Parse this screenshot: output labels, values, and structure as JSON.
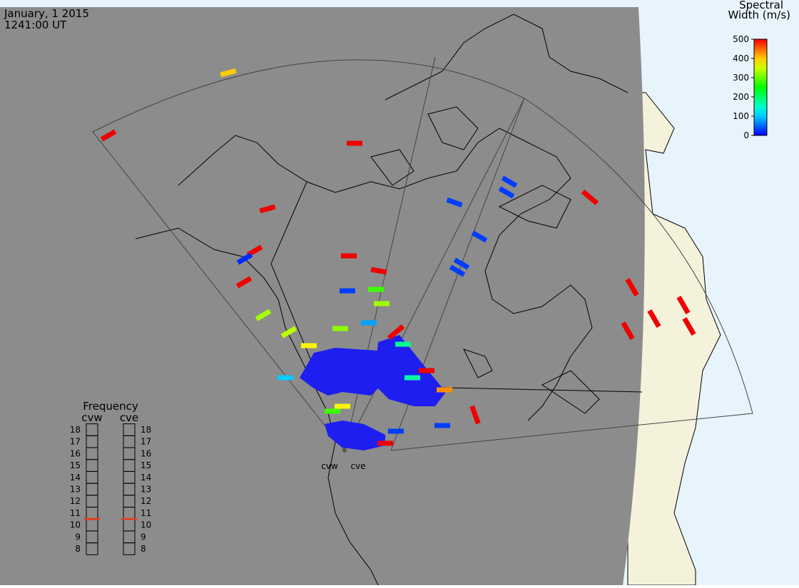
{
  "header": {
    "date": "January, 1 2015",
    "time": "1241:00 UT"
  },
  "colorbar": {
    "title": [
      "Spectral",
      "Width (m/s)"
    ],
    "lim": [
      0,
      500
    ],
    "ticks": [
      0,
      100,
      200,
      300,
      400,
      500
    ]
  },
  "frequency": {
    "title": "Frequency",
    "lim": [
      8,
      18
    ],
    "ticks": [
      8,
      9,
      10,
      11,
      12,
      13,
      14,
      15,
      16,
      17,
      18
    ],
    "radars": [
      {
        "name": "cvw",
        "value": 10.5
      },
      {
        "name": "cve",
        "value": 10.5
      }
    ]
  },
  "radars": [
    "cvw",
    "cve"
  ],
  "echoes": [
    500,
    400,
    500,
    500,
    500,
    20,
    500,
    330,
    500,
    500,
    30,
    280,
    330,
    320,
    80,
    340,
    380,
    30,
    30,
    30,
    30,
    30,
    30,
    500,
    500,
    500,
    500,
    500,
    500,
    500,
    30,
    500,
    180,
    170,
    500,
    430,
    100,
    30,
    500,
    280,
    380
  ]
}
